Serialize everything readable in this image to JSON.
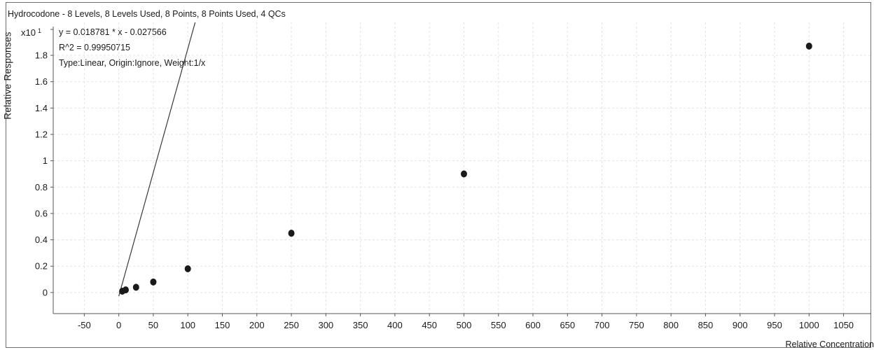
{
  "chart_data": {
    "type": "scatter",
    "title": "Hydrocodone - 8 Levels, 8 Levels Used, 8 Points, 8 Points Used, 4 QCs",
    "xlabel": "Relative Concentration",
    "ylabel": "Relative Responses",
    "y_multiplier": "x10",
    "y_multiplier_exp": "1",
    "annotations": [
      "y = 0.018781 * x  - 0.027566",
      "R^2 = 0.99950715",
      "Type:Linear, Origin:Ignore, Weight:1/x"
    ],
    "xlim": [
      -95,
      1090
    ],
    "ylim": [
      -0.16,
      2.05
    ],
    "x_ticks": [
      -50,
      0,
      50,
      100,
      150,
      200,
      250,
      300,
      350,
      400,
      450,
      500,
      550,
      600,
      650,
      700,
      750,
      800,
      850,
      900,
      950,
      1000,
      1050
    ],
    "y_ticks": [
      0,
      0.2,
      0.4,
      0.6,
      0.8,
      1,
      1.2,
      1.4,
      1.6,
      1.8
    ],
    "y_tick_labels": [
      "0",
      "0.2",
      "0.4",
      "0.6",
      "0.8",
      "1",
      "1.2",
      "1.4",
      "1.6",
      "1.8"
    ],
    "grid": true,
    "fit_line": {
      "slope": 0.018781,
      "intercept": -0.027566
    },
    "series": [
      {
        "points": [
          {
            "x": 5,
            "y": 0.01
          },
          {
            "x": 10,
            "y": 0.02
          },
          {
            "x": 25,
            "y": 0.04
          },
          {
            "x": 50,
            "y": 0.08
          },
          {
            "x": 100,
            "y": 0.18
          },
          {
            "x": 250,
            "y": 0.45
          },
          {
            "x": 500,
            "y": 0.9
          },
          {
            "x": 1000,
            "y": 1.87
          }
        ]
      }
    ],
    "colors": {
      "line": "#3a3a3a",
      "point": "#1a1a1a",
      "grid": "#e2e2e2",
      "axis": "#555555"
    }
  }
}
